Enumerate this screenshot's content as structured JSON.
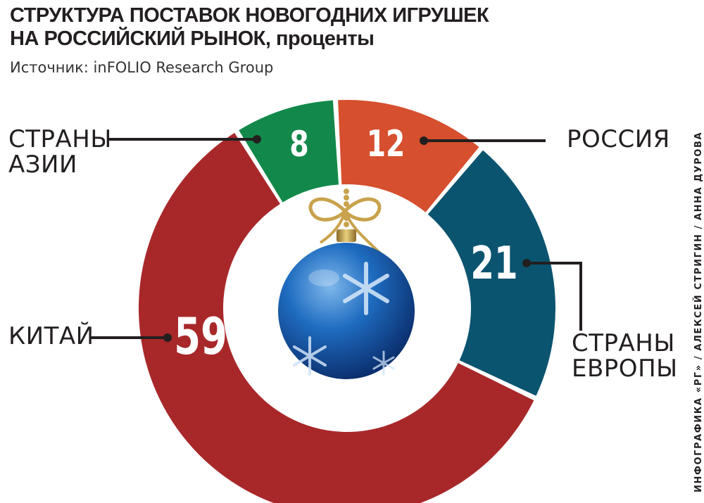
{
  "title_line1": "СТРУКТУРА ПОСТАВОК НОВОГОДНИХ ИГРУШЕК",
  "title_line2_main": "НА РОССИЙСКИЙ РЫНОК,",
  "title_line2_units": "проценты",
  "source": "Источник: inFOLIO Research Group",
  "credit": "ИНФОГРАФИКА «РГ» / АЛЕКСЕЙ СТРИГИН / АННА ДУРОВА",
  "chart_data": {
    "type": "pie",
    "donut": true,
    "units": "проценты",
    "series": [
      {
        "label_lines": [
          "СТРАНЫ",
          "АЗИИ"
        ],
        "value": 8,
        "color": "#12894a"
      },
      {
        "label_lines": [
          "РОССИЯ"
        ],
        "value": 12,
        "color": "#d64f2e"
      },
      {
        "label_lines": [
          "СТРАНЫ",
          "ЕВРОПЫ"
        ],
        "value": 21,
        "color": "#0b5470"
      },
      {
        "label_lines": [
          "КИТАЙ"
        ],
        "value": 59,
        "color": "#a8282a"
      }
    ]
  },
  "colors": {
    "leader_line": "#231f20",
    "value_text": "#ffffff",
    "ornament_blue": "#1b63b5",
    "ribbon_gold": "#c8a24c"
  },
  "center_icon": "christmas-ornament-icon"
}
